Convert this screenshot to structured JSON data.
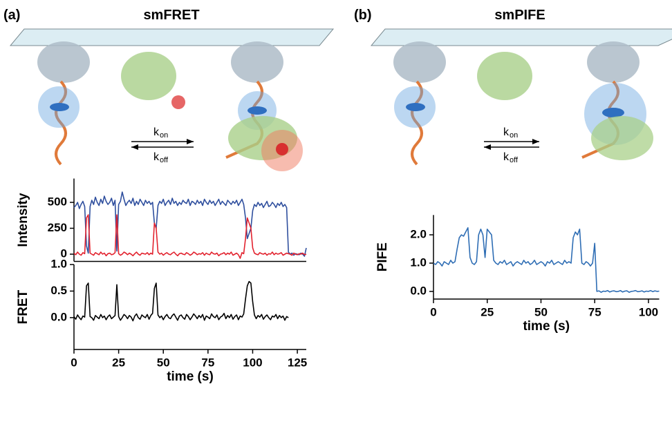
{
  "panels": [
    {
      "label": "(a)",
      "title": "smFRET",
      "rates": [
        {
          "symbol": "k",
          "subscript": "on"
        },
        {
          "symbol": "k",
          "subscript": "off"
        }
      ]
    },
    {
      "label": "(b)",
      "title": "smPIFE",
      "rates": [
        {
          "symbol": "k",
          "subscript": "on"
        },
        {
          "symbol": "k",
          "subscript": "off"
        }
      ]
    }
  ],
  "chart_data": [
    {
      "type": "line",
      "y_label": "Intensity",
      "xlim": [
        0,
        130
      ],
      "ylim": [
        -70,
        730
      ],
      "yticks": [
        0,
        250,
        500
      ],
      "x": [
        0,
        1,
        2,
        3,
        4,
        5,
        6,
        7,
        8,
        9,
        10,
        11,
        12,
        13,
        14,
        15,
        16,
        17,
        18,
        19,
        20,
        21,
        22,
        23,
        24,
        25,
        26,
        27,
        28,
        29,
        30,
        31,
        32,
        33,
        34,
        35,
        36,
        37,
        38,
        39,
        40,
        41,
        42,
        43,
        44,
        45,
        46,
        47,
        48,
        49,
        50,
        51,
        52,
        53,
        54,
        55,
        56,
        57,
        58,
        59,
        60,
        61,
        62,
        63,
        64,
        65,
        66,
        67,
        68,
        69,
        70,
        71,
        72,
        73,
        74,
        75,
        76,
        77,
        78,
        79,
        80,
        81,
        82,
        83,
        84,
        85,
        86,
        87,
        88,
        89,
        90,
        91,
        92,
        93,
        94,
        95,
        96,
        97,
        98,
        99,
        100,
        101,
        102,
        103,
        104,
        105,
        106,
        107,
        108,
        109,
        110,
        111,
        112,
        113,
        114,
        115,
        116,
        117,
        118,
        119,
        120,
        121,
        122,
        123,
        124,
        125,
        126,
        127,
        128,
        129,
        130
      ],
      "series": [
        {
          "color": "#2f4f9e",
          "values": [
            450,
            470,
            500,
            440,
            480,
            510,
            460,
            80,
            10,
            460,
            520,
            480,
            550,
            500,
            470,
            530,
            490,
            560,
            510,
            480,
            500,
            540,
            470,
            520,
            30,
            480,
            510,
            600,
            530,
            470,
            500,
            520,
            490,
            540,
            470,
            510,
            480,
            530,
            500,
            470,
            520,
            490,
            510,
            480,
            500,
            300,
            250,
            470,
            510,
            490,
            530,
            470,
            500,
            520,
            480,
            540,
            490,
            510,
            470,
            500,
            480,
            520,
            500,
            490,
            530,
            470,
            510,
            500,
            480,
            520,
            490,
            510,
            470,
            530,
            500,
            480,
            520,
            490,
            510,
            470,
            500,
            530,
            480,
            510,
            490,
            470,
            520,
            500,
            480,
            510,
            490,
            520,
            470,
            500,
            530,
            480,
            350,
            150,
            200,
            250,
            420,
            480,
            460,
            500,
            470,
            490,
            450,
            480,
            510,
            460,
            470,
            500,
            480,
            450,
            490,
            470,
            500,
            460,
            480,
            450,
            20,
            0,
            10,
            -10,
            5,
            0,
            -5,
            10,
            0,
            -20,
            60
          ]
        },
        {
          "color": "#e2222e",
          "values": [
            10,
            -5,
            20,
            0,
            -10,
            15,
            5,
            350,
            380,
            10,
            0,
            -10,
            15,
            5,
            -5,
            20,
            0,
            10,
            -15,
            5,
            10,
            -5,
            0,
            15,
            380,
            5,
            -10,
            0,
            20,
            10,
            -5,
            10,
            0,
            -15,
            5,
            20,
            0,
            -10,
            10,
            5,
            0,
            15,
            -5,
            10,
            0,
            300,
            250,
            20,
            0,
            10,
            -10,
            5,
            15,
            0,
            -5,
            10,
            20,
            0,
            -15,
            5,
            10,
            0,
            -5,
            15,
            5,
            -10,
            0,
            20,
            10,
            -5,
            5,
            0,
            15,
            -10,
            10,
            0,
            -5,
            20,
            5,
            0,
            10,
            -15,
            0,
            5,
            15,
            -5,
            10,
            0,
            20,
            -10,
            0,
            10,
            -5,
            -40,
            15,
            5,
            150,
            350,
            300,
            250,
            60,
            10,
            0,
            -5,
            15,
            5,
            0,
            10,
            -10,
            5,
            0,
            20,
            -5,
            10,
            0,
            5,
            15,
            -10,
            0,
            10,
            5,
            0,
            -10,
            10,
            0,
            -5,
            5,
            0,
            10,
            -5,
            0
          ]
        }
      ]
    },
    {
      "type": "line",
      "y_label": "FRET",
      "x_label": "time (s)",
      "xlim": [
        0,
        130
      ],
      "ylim": [
        -0.6,
        1.0
      ],
      "xticks": [
        0,
        25,
        50,
        75,
        100,
        125
      ],
      "yticks": [
        {
          "value": 0,
          "label": "0.0"
        },
        0.5,
        {
          "value": 1,
          "label": "1.0"
        }
      ],
      "x": [
        0,
        1,
        2,
        3,
        4,
        5,
        6,
        7,
        8,
        9,
        10,
        11,
        12,
        13,
        14,
        15,
        16,
        17,
        18,
        19,
        20,
        21,
        22,
        23,
        24,
        25,
        26,
        27,
        28,
        29,
        30,
        31,
        32,
        33,
        34,
        35,
        36,
        37,
        38,
        39,
        40,
        41,
        42,
        43,
        44,
        45,
        46,
        47,
        48,
        49,
        50,
        51,
        52,
        53,
        54,
        55,
        56,
        57,
        58,
        59,
        60,
        61,
        62,
        63,
        64,
        65,
        66,
        67,
        68,
        69,
        70,
        71,
        72,
        73,
        74,
        75,
        76,
        77,
        78,
        79,
        80,
        81,
        82,
        83,
        84,
        85,
        86,
        87,
        88,
        89,
        90,
        91,
        92,
        93,
        94,
        95,
        96,
        97,
        98,
        99,
        100,
        101,
        102,
        103,
        104,
        105,
        106,
        107,
        108,
        109,
        110,
        111,
        112,
        113,
        114,
        115,
        116,
        117,
        118,
        119,
        120
      ],
      "series": [
        {
          "color": "#000000",
          "values": [
            0.02,
            -0.03,
            0.05,
            0,
            -0.04,
            0.03,
            0.01,
            0.6,
            0.65,
            0.02,
            0,
            -0.05,
            0.04,
            0.01,
            -0.02,
            0.06,
            0,
            0.03,
            -0.04,
            0.02,
            0.05,
            -0.02,
            0.01,
            0.04,
            0.62,
            0.02,
            -0.05,
            0,
            0.06,
            0.03,
            -0.02,
            0.04,
            0.01,
            -0.06,
            0.03,
            0.07,
            0,
            -0.03,
            0.05,
            0.02,
            0,
            0.06,
            -0.03,
            0.04,
            0.08,
            0.55,
            0.65,
            0.05,
            0,
            0.03,
            -0.04,
            0.02,
            0.06,
            0,
            -0.02,
            0.04,
            0.07,
            0.01,
            -0.05,
            0.03,
            0.05,
            0,
            -0.03,
            0.06,
            0.02,
            -0.04,
            0.01,
            0.07,
            0.03,
            -0.02,
            0.04,
            0,
            0.06,
            -0.05,
            0.03,
            0.01,
            -0.02,
            0.07,
            0.02,
            0,
            0.05,
            -0.04,
            0.01,
            0.03,
            0.08,
            -0.02,
            0.04,
            0,
            0.06,
            -0.03,
            0.02,
            0.05,
            -0.04,
            0.03,
            0.01,
            0.07,
            0.35,
            0.6,
            0.68,
            0.65,
            0.3,
            0.05,
            -0.02,
            0.04,
            0.01,
            0.06,
            -0.03,
            0.02,
            0.05,
            0,
            -0.04,
            0.03,
            0.01,
            0.06,
            -0.02,
            0.04,
            0,
            0.03,
            -0.05,
            0.02,
            0
          ]
        }
      ]
    },
    {
      "type": "line",
      "y_label": "PIFE",
      "x_label": "time (s)",
      "xlim": [
        0,
        105
      ],
      "ylim": [
        -0.27,
        2.7
      ],
      "xticks": [
        0,
        25,
        50,
        75,
        100
      ],
      "yticks": [
        {
          "value": 0,
          "label": "0.0"
        },
        {
          "value": 1,
          "label": "1.0"
        },
        {
          "value": 2,
          "label": "2.0"
        }
      ],
      "x": [
        0,
        1,
        2,
        3,
        4,
        5,
        6,
        7,
        8,
        9,
        10,
        11,
        12,
        13,
        14,
        15,
        16,
        17,
        18,
        19,
        20,
        21,
        22,
        23,
        24,
        25,
        26,
        27,
        28,
        29,
        30,
        31,
        32,
        33,
        34,
        35,
        36,
        37,
        38,
        39,
        40,
        41,
        42,
        43,
        44,
        45,
        46,
        47,
        48,
        49,
        50,
        51,
        52,
        53,
        54,
        55,
        56,
        57,
        58,
        59,
        60,
        61,
        62,
        63,
        64,
        65,
        66,
        67,
        68,
        69,
        70,
        71,
        72,
        73,
        74,
        75,
        76,
        77,
        78,
        79,
        80,
        81,
        82,
        83,
        84,
        85,
        86,
        87,
        88,
        89,
        90,
        91,
        92,
        93,
        94,
        95,
        96,
        97,
        98,
        99,
        100,
        101,
        102,
        103,
        104,
        105
      ],
      "series": [
        {
          "color": "#2e6db4",
          "values": [
            1.0,
            0.95,
            1.05,
            1.0,
            0.9,
            1.05,
            1.0,
            0.95,
            1.1,
            1.0,
            1.05,
            1.5,
            1.9,
            2.0,
            1.95,
            2.1,
            2.25,
            1.2,
            1.0,
            0.95,
            1.05,
            2.0,
            2.2,
            2.0,
            1.2,
            2.2,
            2.1,
            2.0,
            1.1,
            1.0,
            0.95,
            1.05,
            1.0,
            1.1,
            0.95,
            1.0,
            1.05,
            0.9,
            1.0,
            1.05,
            1.0,
            0.95,
            1.1,
            1.0,
            1.05,
            0.95,
            1.0,
            1.1,
            0.95,
            1.0,
            1.05,
            1.0,
            0.9,
            1.05,
            1.0,
            1.1,
            0.95,
            1.0,
            1.05,
            1.0,
            0.95,
            1.1,
            1.0,
            1.05,
            1.0,
            1.9,
            2.1,
            2.0,
            2.2,
            1.0,
            0.95,
            1.05,
            1.0,
            0.9,
            1.0,
            1.7,
            0.0,
            0.02,
            -0.03,
            0.01,
            0,
            0.03,
            -0.02,
            0.01,
            0.02,
            -0.01,
            0,
            0.03,
            -0.02,
            0.01,
            0.02,
            -0.03,
            0,
            0.01,
            0.03,
            -0.01,
            0,
            0.02,
            -0.02,
            0.01,
            0,
            0.03,
            -0.01,
            0.02,
            0,
            0.01
          ]
        }
      ]
    }
  ]
}
